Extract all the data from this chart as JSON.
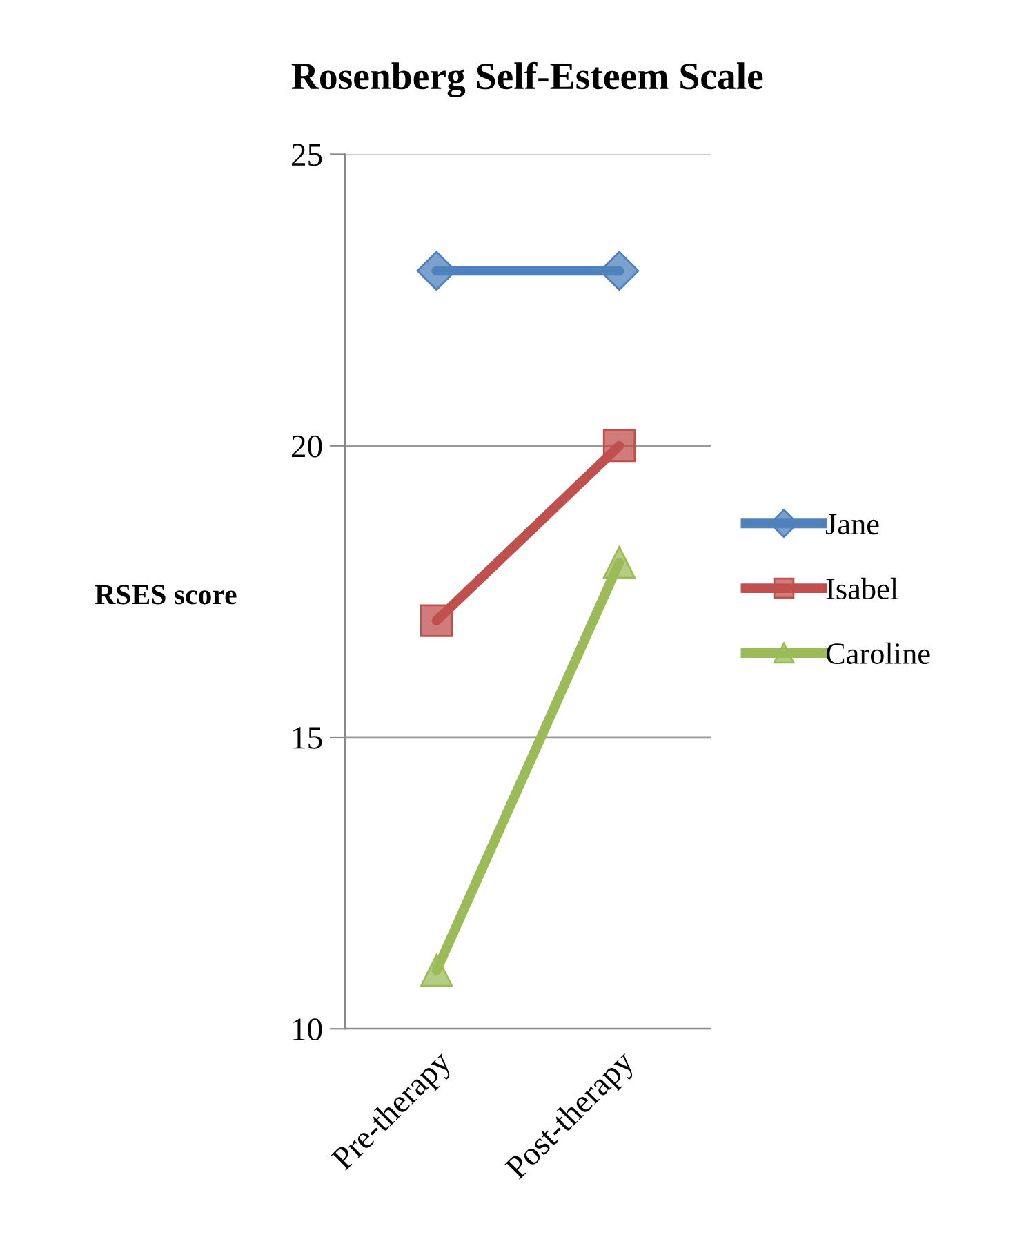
{
  "chart_data": {
    "type": "line",
    "title": "Rosenberg Self-Esteem Scale",
    "ylabel": "RSES score",
    "categories": [
      "Pre-therapy",
      "Post-therapy"
    ],
    "series": [
      {
        "name": "Jane",
        "color": "#4f81bd",
        "values": [
          23,
          23
        ],
        "marker": "diamond"
      },
      {
        "name": "Isabel",
        "color": "#c0504d",
        "values": [
          17,
          20
        ],
        "marker": "square"
      },
      {
        "name": "Caroline",
        "color": "#9bbb59",
        "values": [
          11,
          18
        ],
        "marker": "triangle"
      }
    ],
    "ylim": [
      10,
      25
    ],
    "yticks": [
      10,
      15,
      20,
      25
    ],
    "grid": "y",
    "legend": "right",
    "line_style": "solid"
  }
}
